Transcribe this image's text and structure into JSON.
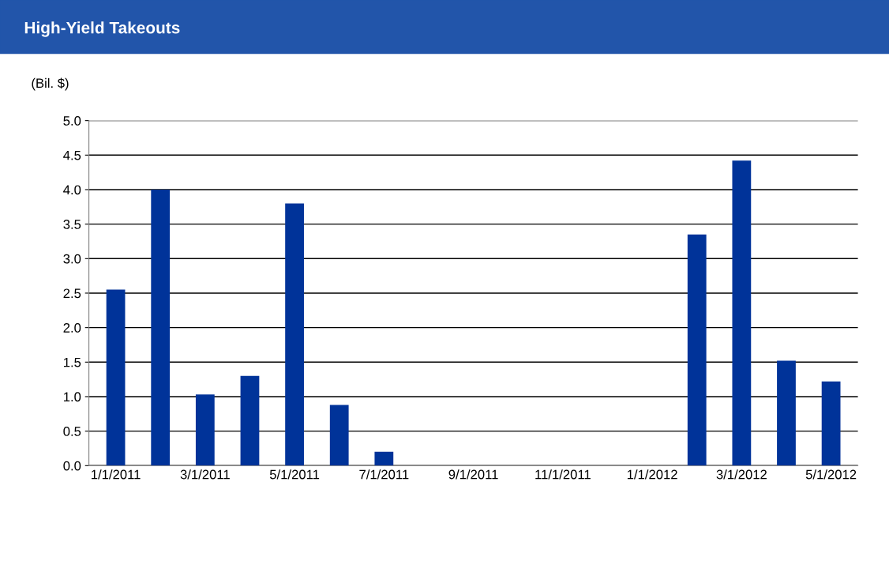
{
  "chart_data": {
    "type": "bar",
    "title": "High-Yield Takeouts",
    "ylabel": "(Bil. $)",
    "categories": [
      "1/1/2011",
      null,
      "3/1/2011",
      null,
      "5/1/2011",
      null,
      "7/1/2011",
      null,
      "9/1/2011",
      null,
      "11/1/2011",
      null,
      "1/1/2012",
      null,
      "3/1/2012",
      null,
      "5/1/2012"
    ],
    "values": [
      2.55,
      4.0,
      1.03,
      1.3,
      3.8,
      0.88,
      0.2,
      0,
      0,
      0,
      0,
      0,
      0,
      3.35,
      4.42,
      1.52,
      1.22
    ],
    "color": "#003399",
    "ylim": [
      0,
      5
    ],
    "yticks": [
      {
        "value": 0,
        "label": "0.0"
      },
      {
        "value": 0.5,
        "label": "0.5"
      },
      {
        "value": 1,
        "label": "1.0"
      },
      {
        "value": 1.5,
        "label": "1.5"
      },
      {
        "value": 2,
        "label": "2.0"
      },
      {
        "value": 2.5,
        "label": "2.5"
      },
      {
        "value": 3,
        "label": "3.0"
      },
      {
        "value": 3.5,
        "label": "3.5"
      },
      {
        "value": 4,
        "label": "4.0"
      },
      {
        "value": 4.5,
        "label": "4.5"
      },
      {
        "value": 5,
        "label": "5.0"
      }
    ],
    "grid": "y",
    "legend": false
  }
}
